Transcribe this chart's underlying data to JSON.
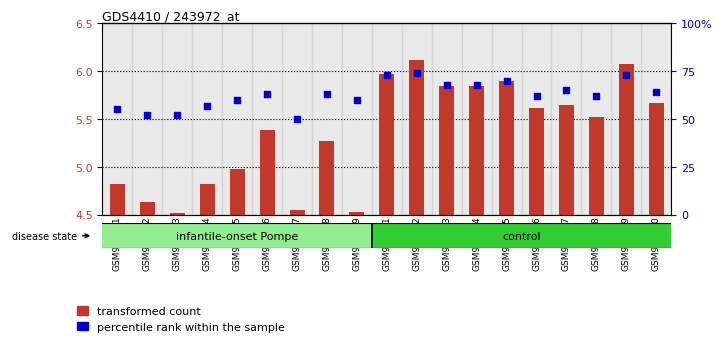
{
  "title": "GDS4410 / 243972_at",
  "samples": [
    "GSM947471",
    "GSM947472",
    "GSM947473",
    "GSM947474",
    "GSM947475",
    "GSM947476",
    "GSM947477",
    "GSM947478",
    "GSM947479",
    "GSM947461",
    "GSM947462",
    "GSM947463",
    "GSM947464",
    "GSM947465",
    "GSM947466",
    "GSM947467",
    "GSM947468",
    "GSM947469",
    "GSM947470"
  ],
  "transformed_count": [
    4.82,
    4.63,
    4.52,
    4.82,
    4.98,
    5.38,
    4.55,
    5.27,
    4.53,
    5.97,
    6.12,
    5.85,
    5.85,
    5.9,
    5.62,
    5.65,
    5.52,
    6.07,
    5.67
  ],
  "percentile_rank": [
    55,
    52,
    52,
    57,
    60,
    63,
    50,
    63,
    60,
    73,
    74,
    68,
    68,
    70,
    62,
    65,
    62,
    73,
    64
  ],
  "ylim_left": [
    4.5,
    6.5
  ],
  "ylim_right": [
    0,
    100
  ],
  "yticks_left": [
    4.5,
    5.0,
    5.5,
    6.0,
    6.5
  ],
  "yticks_right": [
    0,
    25,
    50,
    75,
    100
  ],
  "ytick_labels_right": [
    "0",
    "25",
    "50",
    "75",
    "100%"
  ],
  "bar_color": "#C0392B",
  "dot_color": "#0000CD",
  "bar_bottom": 4.5,
  "pompe_color": "#90EE90",
  "control_color": "#32CD32",
  "n_pompe": 9,
  "disease_state_label": "disease state",
  "group_label_pompe": "infantile-onset Pompe",
  "group_label_control": "control",
  "legend_label_bar": "transformed count",
  "legend_label_dot": "percentile rank within the sample",
  "grid_lines": [
    5.0,
    5.5,
    6.0
  ]
}
